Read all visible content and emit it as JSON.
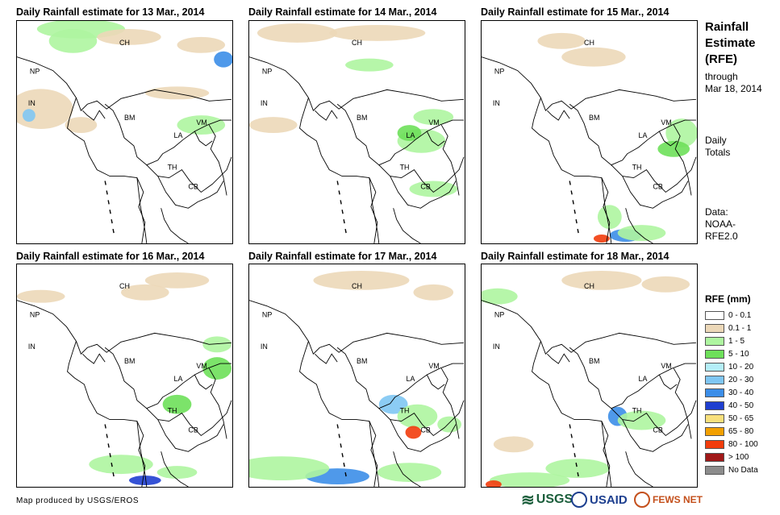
{
  "panels": [
    {
      "title": "Daily Rainfall estimate for 13 Mar., 2014"
    },
    {
      "title": "Daily Rainfall estimate for 14 Mar., 2014"
    },
    {
      "title": "Daily Rainfall estimate for 15 Mar., 2014"
    },
    {
      "title": "Daily Rainfall estimate for 16 Mar., 2014"
    },
    {
      "title": "Daily Rainfall estimate for 17 Mar., 2014"
    },
    {
      "title": "Daily Rainfall estimate for 18 Mar., 2014"
    }
  ],
  "country_labels": {
    "ch": "CH",
    "np": "NP",
    "in": "IN",
    "bm": "BM",
    "la": "LA",
    "vm": "VM",
    "th": "TH",
    "cb": "CB"
  },
  "side": {
    "title_line1": "Rainfall",
    "title_line2": "Estimate",
    "title_line3": "(RFE)",
    "through": "through",
    "date": "Mar 18, 2014",
    "daily": "Daily",
    "totals": "Totals",
    "data_label": "Data:",
    "data_source1": "NOAA-",
    "data_source2": "RFE2.0"
  },
  "legend": {
    "title": "RFE (mm)",
    "items": [
      {
        "label": "0 - 0.1",
        "color": "#ffffff"
      },
      {
        "label": "0.1 - 1",
        "color": "#ecd8b8"
      },
      {
        "label": "1 - 5",
        "color": "#aef5a0"
      },
      {
        "label": "5 - 10",
        "color": "#6ee05a"
      },
      {
        "label": "10 - 20",
        "color": "#b4eef8"
      },
      {
        "label": "20 - 30",
        "color": "#7fc6f3"
      },
      {
        "label": "30 - 40",
        "color": "#3c8ee8"
      },
      {
        "label": "40 - 50",
        "color": "#1f3fd0"
      },
      {
        "label": "50 - 65",
        "color": "#f8e07c"
      },
      {
        "label": "65 - 80",
        "color": "#f2a000"
      },
      {
        "label": "80 - 100",
        "color": "#f23c0c"
      },
      {
        "label": "> 100",
        "color": "#a01818"
      },
      {
        "label": "No Data",
        "color": "#8c8c8c"
      }
    ]
  },
  "footer": {
    "credit": "Map produced by USGS/EROS",
    "usgs": "USGS",
    "usaid": "USAID",
    "fews": "FEWS NET"
  }
}
